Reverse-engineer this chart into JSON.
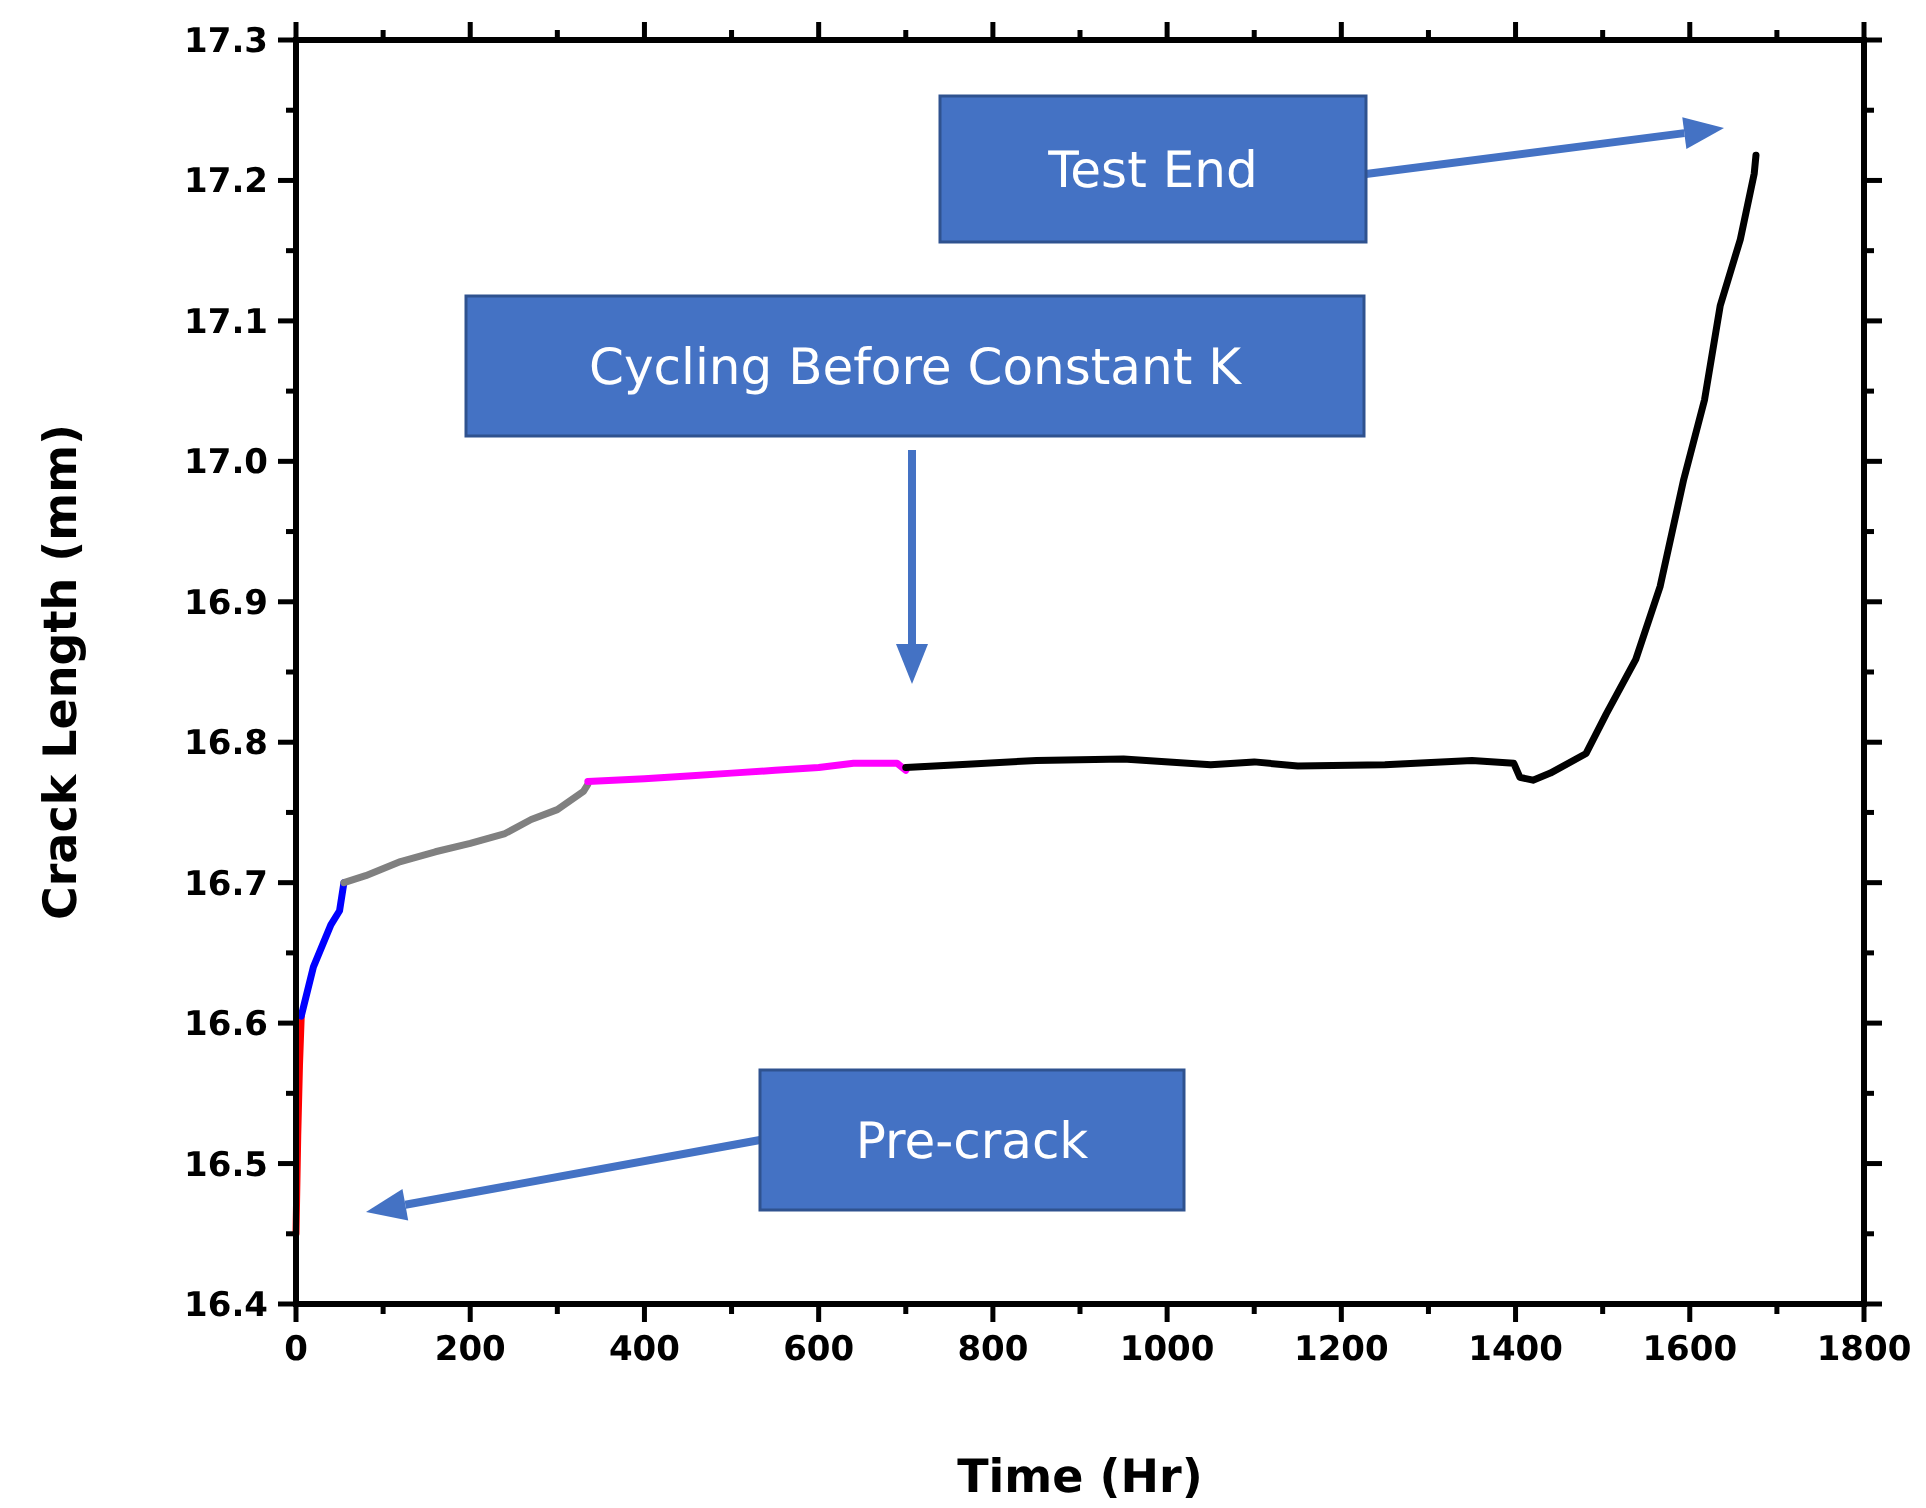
{
  "chart_data": {
    "type": "line",
    "xlabel": "Time (Hr)",
    "ylabel": "Crack Length (mm)",
    "xlim": [
      0,
      1800
    ],
    "ylim": [
      16.4,
      17.3
    ],
    "xticks": [
      0,
      {
        "value": 100,
        "label": null
      },
      200,
      {
        "value": 300,
        "label": null
      },
      400,
      {
        "value": 500,
        "label": null
      },
      600,
      {
        "value": 700,
        "label": null
      },
      800,
      {
        "value": 900,
        "label": null
      },
      1000,
      {
        "value": 1100,
        "label": null
      },
      1200,
      {
        "value": 1300,
        "label": null
      },
      1400,
      {
        "value": 1500,
        "label": null
      },
      1600,
      {
        "value": 1700,
        "label": null
      },
      1800
    ],
    "yticks": [
      16.4,
      {
        "value": 16.45,
        "label": null
      },
      16.5,
      {
        "value": 16.55,
        "label": null
      },
      16.6,
      {
        "value": 16.65,
        "label": null
      },
      16.7,
      {
        "value": 16.75,
        "label": null
      },
      16.8,
      {
        "value": 16.85,
        "label": null
      },
      16.9,
      {
        "value": 16.95,
        "label": null
      },
      {
        "value": 17,
        "label": "17.0"
      },
      {
        "value": 17.05,
        "label": null
      },
      17.1,
      {
        "value": 17.15,
        "label": null
      },
      17.2,
      {
        "value": 17.25,
        "label": null
      },
      17.3
    ],
    "grid": false,
    "marker": "none",
    "line_style": "solid",
    "annotations": [
      "Test End",
      "Cycling Before Constant K",
      "Pre-crack"
    ],
    "series": [
      {
        "color": "#ff0000",
        "x": [
          0,
          2,
          4,
          6
        ],
        "values": [
          16.45,
          16.52,
          16.57,
          16.605
        ]
      },
      {
        "color": "#0000ff",
        "x": [
          6,
          20,
          40,
          50,
          55
        ],
        "values": [
          16.605,
          16.64,
          16.67,
          16.68,
          16.7
        ]
      },
      {
        "color": "#808080",
        "x": [
          55,
          80,
          120,
          160,
          200,
          240,
          270,
          300,
          330,
          335
        ],
        "values": [
          16.7,
          16.705,
          16.715,
          16.722,
          16.728,
          16.735,
          16.745,
          16.752,
          16.765,
          16.77
        ]
      },
      {
        "color": "#ff00ff",
        "x": [
          335,
          400,
          450,
          500,
          550,
          600,
          640,
          690,
          700
        ],
        "values": [
          16.772,
          16.774,
          16.776,
          16.778,
          16.78,
          16.782,
          16.785,
          16.785,
          16.78
        ]
      },
      {
        "color": "#000000",
        "x": [
          700,
          760,
          850,
          950,
          1050,
          1100,
          1150,
          1250,
          1350,
          1398,
          1405,
          1420,
          1440,
          1481,
          1504,
          1538,
          1566,
          1593,
          1617,
          1635,
          1658,
          1674,
          1676
        ],
        "values": [
          16.782,
          16.784,
          16.787,
          16.788,
          16.784,
          16.786,
          16.783,
          16.784,
          16.787,
          16.785,
          16.775,
          16.773,
          16.778,
          16.792,
          16.82,
          16.859,
          16.911,
          16.987,
          17.044,
          17.111,
          17.158,
          17.205,
          17.218
        ]
      }
    ]
  }
}
